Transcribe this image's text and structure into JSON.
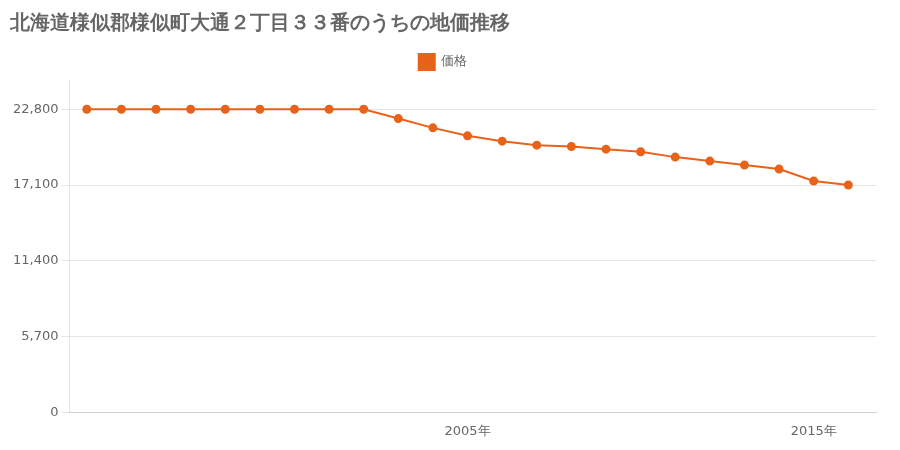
{
  "chart_data": {
    "type": "line",
    "title": "北海道様似郡様似町大通２丁目３３番のうちの地価推移",
    "x": [
      1994,
      1995,
      1996,
      1997,
      1998,
      1999,
      2000,
      2001,
      2002,
      2003,
      2004,
      2005,
      2006,
      2007,
      2008,
      2009,
      2010,
      2011,
      2012,
      2013,
      2014,
      2015,
      2016
    ],
    "series": [
      {
        "name": "価格",
        "color": "#e8621a",
        "marker": "circle",
        "values": [
          22800,
          22800,
          22800,
          22800,
          22800,
          22800,
          22800,
          22800,
          22800,
          22100,
          21400,
          20800,
          20400,
          20100,
          20000,
          19800,
          19600,
          19200,
          18900,
          18600,
          18300,
          17400,
          17100
        ]
      }
    ],
    "xlim": [
      1993.5,
      2016.8
    ],
    "xticks": [
      {
        "value": 2005,
        "label": "2005年"
      },
      {
        "value": 2015,
        "label": "2015年"
      }
    ],
    "ylim": [
      0,
      25000
    ],
    "yticks": [
      0,
      {
        "value": 5700,
        "label": "5,700"
      },
      {
        "value": 11400,
        "label": "11,400"
      },
      {
        "value": 17100,
        "label": "17,100"
      },
      {
        "value": 22800,
        "label": "22,800"
      }
    ],
    "grid": "y",
    "legend": "top"
  }
}
